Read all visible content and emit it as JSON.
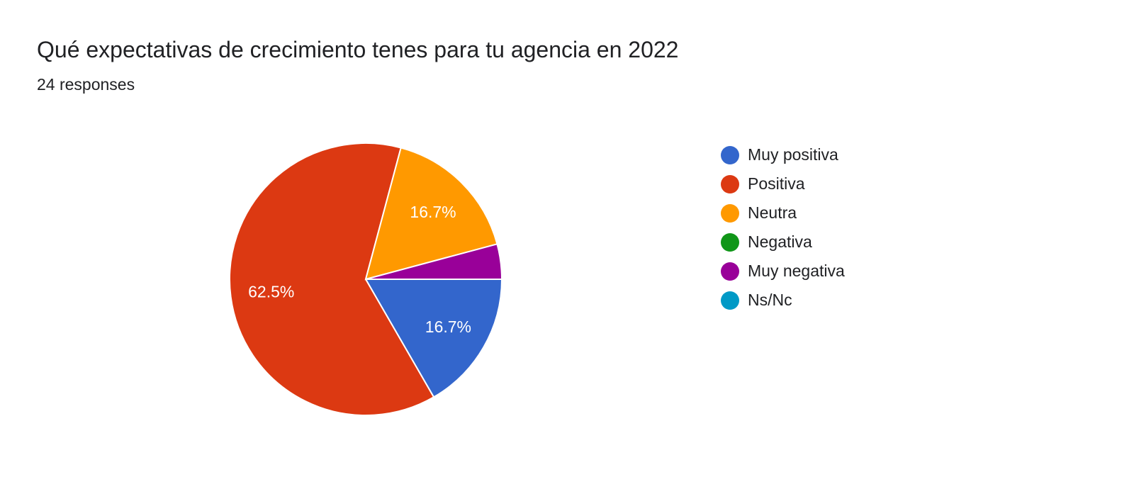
{
  "header": {
    "title": "Qué expectativas de crecimiento tenes para tu agencia en 2022",
    "subtitle": "24 responses"
  },
  "chart_data": {
    "type": "pie",
    "title": "Qué expectativas de crecimiento tenes para tu agencia en 2022",
    "total_responses": 24,
    "legend_position": "right",
    "categories": [
      "Muy positiva",
      "Positiva",
      "Neutra",
      "Negativa",
      "Muy negativa",
      "Ns/Nc"
    ],
    "values": [
      4,
      15,
      4,
      0,
      1,
      0
    ],
    "percentages": [
      16.7,
      62.5,
      16.7,
      0,
      4.2,
      0
    ],
    "data_labels": [
      "16.7%",
      "62.5%",
      "16.7%",
      "",
      "",
      ""
    ],
    "colors": [
      "#3366cc",
      "#dc3912",
      "#ff9900",
      "#109618",
      "#990099",
      "#0099c6"
    ]
  }
}
